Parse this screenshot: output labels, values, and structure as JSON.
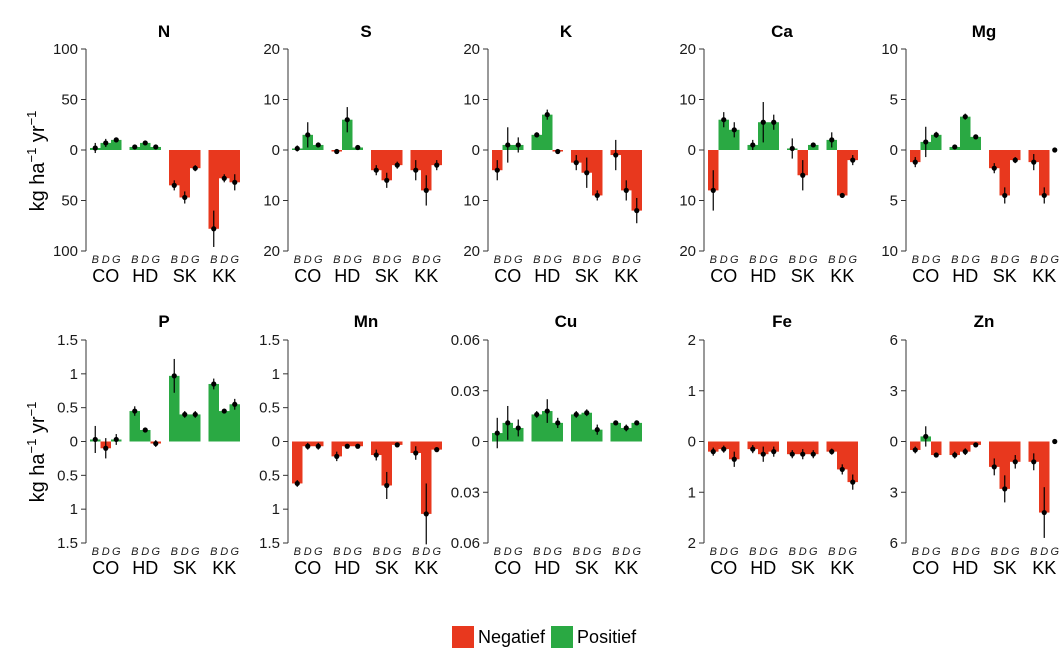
{
  "colors": {
    "negative": "#e8381e",
    "positive": "#2aa943"
  },
  "legend": {
    "negative_label": "Negatief",
    "positive_label": "Positief"
  },
  "y_axis_label": "kg ha-1 yr-1",
  "chart_data": [
    {
      "type": "bar",
      "title": "N",
      "ylim": [
        -100,
        100
      ],
      "yticks": [
        100,
        50,
        0,
        50,
        100
      ],
      "groups": [
        "CO",
        "HD",
        "SK",
        "KK"
      ],
      "sublabels": "BDG",
      "values": [
        [
          2,
          7,
          10
        ],
        [
          3,
          7,
          3
        ],
        [
          -35,
          -47,
          -18
        ],
        [
          -78,
          -28,
          -32
        ]
      ],
      "errors": [
        [
          5,
          4,
          2
        ],
        [
          1,
          2,
          1
        ],
        [
          5,
          6,
          3
        ],
        [
          18,
          4,
          8
        ]
      ]
    },
    {
      "type": "bar",
      "title": "S",
      "ylim": [
        -20,
        20
      ],
      "yticks": [
        20,
        10,
        0,
        10,
        20
      ],
      "groups": [
        "CO",
        "HD",
        "SK",
        "KK"
      ],
      "sublabels": "BDG",
      "values": [
        [
          0.3,
          3,
          1
        ],
        [
          -0.3,
          6,
          0.5
        ],
        [
          -4,
          -6,
          -3
        ],
        [
          -4,
          -8,
          -3
        ]
      ],
      "errors": [
        [
          0.6,
          2.5,
          0.5
        ],
        [
          0.2,
          2.5,
          0.2
        ],
        [
          1,
          1.5,
          0.7
        ],
        [
          2,
          3,
          1
        ]
      ]
    },
    {
      "type": "bar",
      "title": "K",
      "ylim": [
        -20,
        20
      ],
      "yticks": [
        20,
        10,
        0,
        10,
        20
      ],
      "groups": [
        "CO",
        "HD",
        "SK",
        "KK"
      ],
      "sublabels": "BDG",
      "values": [
        [
          -4,
          1,
          1
        ],
        [
          3,
          7,
          -0.3
        ],
        [
          -2.5,
          -4.5,
          -9
        ],
        [
          -1,
          -8,
          -12
        ]
      ],
      "errors": [
        [
          2,
          3.5,
          1.5
        ],
        [
          0.5,
          1,
          0.3
        ],
        [
          1.5,
          3,
          1
        ],
        [
          3,
          2,
          2.5
        ]
      ]
    },
    {
      "type": "bar",
      "title": "Ca",
      "ylim": [
        -20,
        20
      ],
      "yticks": [
        20,
        10,
        0,
        10,
        20
      ],
      "groups": [
        "CO",
        "HD",
        "SK",
        "KK"
      ],
      "sublabels": "BDG",
      "values": [
        [
          -8,
          6,
          4
        ],
        [
          1,
          5.5,
          5.5
        ],
        [
          0.3,
          -5,
          1
        ],
        [
          2,
          -9,
          -2
        ]
      ],
      "errors": [
        [
          4,
          1.5,
          1.5
        ],
        [
          1,
          4,
          1.5
        ],
        [
          2,
          3,
          0.3
        ],
        [
          1.5,
          0.5,
          1
        ]
      ]
    },
    {
      "type": "bar",
      "title": "Mg",
      "ylim": [
        -10,
        10
      ],
      "yticks": [
        10,
        5,
        0,
        5,
        10
      ],
      "groups": [
        "CO",
        "HD",
        "SK",
        "KK"
      ],
      "sublabels": "BDG",
      "values": [
        [
          -1.2,
          0.8,
          1.5
        ],
        [
          0.3,
          3.3,
          1.3
        ],
        [
          -1.8,
          -4.5,
          -1
        ],
        [
          -1.2,
          -4.5,
          0
        ]
      ],
      "errors": [
        [
          0.5,
          1.5,
          0.3
        ],
        [
          0.1,
          0.3,
          0.2
        ],
        [
          0.5,
          0.8,
          0.3
        ],
        [
          0.8,
          0.8,
          0
        ]
      ]
    },
    {
      "type": "bar",
      "title": "P",
      "ylim": [
        -1.5,
        1.5
      ],
      "yticks": [
        1.5,
        1.0,
        0.5,
        0.0,
        0.5,
        1.0,
        1.5
      ],
      "groups": [
        "CO",
        "HD",
        "SK",
        "KK"
      ],
      "sublabels": "BDG",
      "values": [
        [
          0.03,
          -0.1,
          0.03
        ],
        [
          0.45,
          0.17,
          -0.03
        ],
        [
          0.97,
          0.4,
          0.4
        ],
        [
          0.85,
          0.45,
          0.55
        ]
      ],
      "errors": [
        [
          0.2,
          0.15,
          0.08
        ],
        [
          0.07,
          0.03,
          0.05
        ],
        [
          0.25,
          0.05,
          0.05
        ],
        [
          0.08,
          0.03,
          0.08
        ]
      ]
    },
    {
      "type": "bar",
      "title": "Mn",
      "ylim": [
        -1.5,
        1.5
      ],
      "yticks": [
        1.5,
        1.0,
        0.5,
        0.0,
        0.5,
        1.0,
        1.5
      ],
      "groups": [
        "CO",
        "HD",
        "SK",
        "KK"
      ],
      "sublabels": "BDG",
      "values": [
        [
          -0.62,
          -0.07,
          -0.07
        ],
        [
          -0.22,
          -0.07,
          -0.07
        ],
        [
          -0.2,
          -0.65,
          -0.05
        ],
        [
          -0.17,
          -1.07,
          -0.12
        ]
      ],
      "errors": [
        [
          0.05,
          0.05,
          0.05
        ],
        [
          0.07,
          0.03,
          0.03
        ],
        [
          0.08,
          0.2,
          0.02
        ],
        [
          0.1,
          0.45,
          0.03
        ]
      ]
    },
    {
      "type": "bar",
      "title": "Cu",
      "ylim": [
        -0.06,
        0.06
      ],
      "yticks": [
        0.06,
        0.03,
        0,
        0.03,
        0.06
      ],
      "groups": [
        "CO",
        "HD",
        "SK",
        "KK"
      ],
      "sublabels": "BDG",
      "values": [
        [
          0.005,
          0.011,
          0.008
        ],
        [
          0.016,
          0.018,
          0.011
        ],
        [
          0.016,
          0.017,
          0.007
        ],
        [
          0.011,
          0.008,
          0.011
        ]
      ],
      "errors": [
        [
          0.009,
          0.01,
          0.005
        ],
        [
          0.002,
          0.007,
          0.003
        ],
        [
          0.002,
          0.002,
          0.003
        ],
        [
          0.001,
          0.002,
          0.001
        ]
      ]
    },
    {
      "type": "bar",
      "title": "Fe",
      "ylim": [
        -2,
        2
      ],
      "yticks": [
        2,
        1,
        0,
        1,
        2
      ],
      "groups": [
        "CO",
        "HD",
        "SK",
        "KK"
      ],
      "sublabels": "BDG",
      "values": [
        [
          -0.2,
          -0.15,
          -0.35
        ],
        [
          -0.15,
          -0.25,
          -0.2
        ],
        [
          -0.25,
          -0.25,
          -0.25
        ],
        [
          -0.2,
          -0.55,
          -0.8
        ]
      ],
      "errors": [
        [
          0.08,
          0.07,
          0.15
        ],
        [
          0.08,
          0.15,
          0.1
        ],
        [
          0.08,
          0.1,
          0.08
        ],
        [
          0.06,
          0.1,
          0.15
        ]
      ]
    },
    {
      "type": "bar",
      "title": "Zn",
      "ylim": [
        -6,
        6
      ],
      "yticks": [
        6,
        3,
        0,
        3,
        6
      ],
      "groups": [
        "CO",
        "HD",
        "SK",
        "KK"
      ],
      "sublabels": "BDG",
      "values": [
        [
          -0.5,
          0.3,
          -0.8
        ],
        [
          -0.8,
          -0.6,
          -0.2
        ],
        [
          -1.5,
          -2.8,
          -1.2
        ],
        [
          -1.2,
          -4.2,
          0
        ]
      ],
      "errors": [
        [
          0.2,
          0.6,
          0.1
        ],
        [
          0.2,
          0.2,
          0.1
        ],
        [
          0.5,
          0.8,
          0.4
        ],
        [
          0.5,
          1.5,
          0
        ]
      ]
    }
  ]
}
